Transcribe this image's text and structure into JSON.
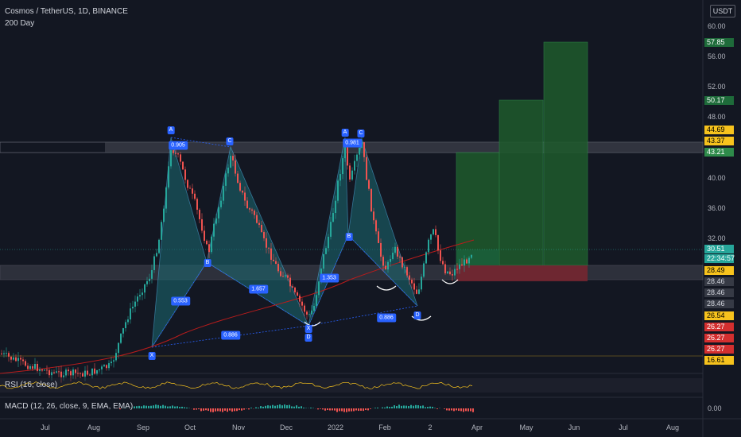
{
  "header": {
    "title": "Cosmos / TetherUS, 1D, BINANCE",
    "indicator": "200 Day",
    "currency": "USDT"
  },
  "y_axis_ticks": [
    "60.00",
    "56.00",
    "52.00",
    "48.00",
    "40.00",
    "36.00",
    "32.00"
  ],
  "x_axis_ticks": [
    "Jul",
    "Aug",
    "Sep",
    "Oct",
    "Nov",
    "Dec",
    "2022",
    "Feb",
    "2",
    "Apr",
    "May",
    "Jun",
    "Jul",
    "Aug"
  ],
  "price_tags": [
    {
      "label": "57.85",
      "color": "#1e6b3a",
      "text_color": "#ffffff"
    },
    {
      "label": "50.17",
      "color": "#1e6b3a",
      "text_color": "#ffffff"
    },
    {
      "label": "44.69",
      "color": "#f7c31d",
      "text_color": "#000000"
    },
    {
      "label": "43.37",
      "color": "#f7c31d",
      "text_color": "#000000"
    },
    {
      "label": "43.21",
      "color": "#2e8b4a",
      "text_color": "#ffffff"
    },
    {
      "label": "30.51",
      "color": "#26a69a",
      "text_color": "#ffffff"
    },
    {
      "label": "22:34:57",
      "color": "#26a69a",
      "text_color": "#ffffff"
    },
    {
      "label": "28.49",
      "color": "#f7c31d",
      "text_color": "#000000"
    },
    {
      "label": "28.46",
      "color": "#363a45",
      "text_color": "#d1d4dc"
    },
    {
      "label": "28.46",
      "color": "#363a45",
      "text_color": "#d1d4dc"
    },
    {
      "label": "28.46",
      "color": "#363a45",
      "text_color": "#d1d4dc"
    },
    {
      "label": "26.54",
      "color": "#f7c31d",
      "text_color": "#000000"
    },
    {
      "label": "26.27",
      "color": "#d32f2f",
      "text_color": "#ffffff"
    },
    {
      "label": "26.27",
      "color": "#d32f2f",
      "text_color": "#ffffff"
    },
    {
      "label": "26.27",
      "color": "#d32f2f",
      "text_color": "#ffffff"
    },
    {
      "label": "16.61",
      "color": "#f7c31d",
      "text_color": "#000000"
    }
  ],
  "pattern_points": [
    "X",
    "A",
    "B",
    "C",
    "D",
    "X",
    "A",
    "B",
    "C",
    "D"
  ],
  "ratios": [
    "0.905",
    "0.553",
    "1.657",
    "0.886",
    "0.981",
    "0.886",
    "1.353"
  ],
  "panes": {
    "rsi_label": "RSI (16, close)",
    "macd_label": "MACD (12, 26, close, 9, EMA, EMA)",
    "macd_value": "0.00"
  },
  "chart_data": {
    "type": "candlestick",
    "title": "Cosmos / TetherUS, 1D, BINANCE",
    "currency": "USDT",
    "ylim": [
      12,
      62
    ],
    "y_scale": "log",
    "series": [
      {
        "name": "200 Day",
        "type": "line",
        "points": [
          [
            "Jul",
            16.6
          ],
          [
            "Sep",
            19.4
          ],
          [
            "Oct",
            23.3
          ],
          [
            "Dec",
            26.2
          ],
          [
            "2022",
            27.9
          ],
          [
            "Feb",
            29.3
          ],
          [
            "Apr",
            31.8
          ]
        ]
      }
    ],
    "price_path": [
      [
        "Jul",
        16
      ],
      [
        "Aug",
        14
      ],
      [
        "Sep",
        19
      ],
      [
        "mid-Sep",
        44.7
      ],
      [
        "early-Oct",
        30.4
      ],
      [
        "mid-Oct",
        43.4
      ],
      [
        "Nov",
        36
      ],
      [
        "mid-Dec",
        22
      ],
      [
        "early-Jan",
        40
      ],
      [
        "mid-Jan",
        44.7
      ],
      [
        "Feb",
        28
      ],
      [
        "mid-Feb",
        24
      ],
      [
        "early-Mar",
        35
      ],
      [
        "mid-Mar",
        28.5
      ],
      [
        "late-Mar",
        30.51
      ]
    ],
    "harmonic_patterns": [
      {
        "points": {
          "X": 19.4,
          "A": 44.7,
          "B": 30.4,
          "C": 43.4,
          "D": 23.3
        },
        "ratios": [
          "0.905",
          "0.553",
          "1.657",
          "0.886"
        ]
      },
      {
        "points": {
          "X": 23.3,
          "A": 44.7,
          "B": 33.0,
          "C": 44.7,
          "D": 24.5
        },
        "ratios": [
          "0.981",
          "1.353",
          "0.886"
        ]
      }
    ],
    "zones": [
      {
        "name": "resistance",
        "low": 43.21,
        "high": 44.69
      },
      {
        "name": "support",
        "low": 26.54,
        "high": 28.49
      }
    ],
    "targets": [
      43.21,
      50.17,
      57.85
    ],
    "stop": 26.27,
    "last_price": 30.51,
    "countdown": "22:34:57",
    "x_ticks": [
      "Jul",
      "Aug",
      "Sep",
      "Oct",
      "Nov",
      "Dec",
      "2022",
      "Feb",
      "2",
      "Apr",
      "May",
      "Jun",
      "Jul",
      "Aug"
    ],
    "y_ticks": [
      60,
      56,
      52,
      48,
      40,
      36,
      32
    ]
  }
}
